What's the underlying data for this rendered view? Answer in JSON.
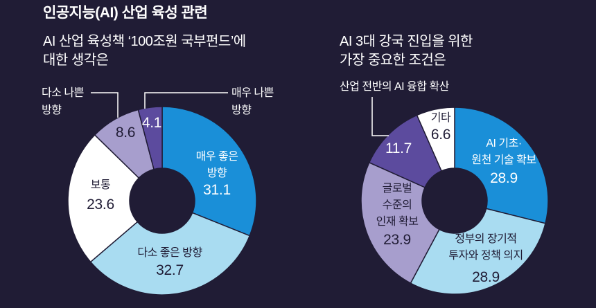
{
  "title": "인공지능(AI) 산업 육성 관련",
  "colors": {
    "background": "#201c35",
    "text_light": "#ffffff",
    "text_dark": "#201c35"
  },
  "chart_data": [
    {
      "type": "pie",
      "donut": true,
      "title": "AI 산업 육성책 ‘100조원 국부펀드’에\n대한 생각은",
      "categories": [
        "매우 좋은\n방향",
        "다소 좋은 방향",
        "보통",
        "다소 나쁜\n방향",
        "매우 나쁜\n방향"
      ],
      "values": [
        31.1,
        32.7,
        23.6,
        8.6,
        4.1
      ],
      "colors": [
        "#1a8fd8",
        "#a9dcf1",
        "#ffffff",
        "#a79ecd",
        "#5c4b9e"
      ]
    },
    {
      "type": "pie",
      "donut": true,
      "title": "AI 3대 강국 진입을 위한\n가장 중요한 조건은",
      "categories": [
        "AI 기초·\n원천 기술 확보",
        "정부의 장기적\n투자와 정책 의지",
        "글로벌\n수준의\n인재 확보",
        "산업 전반의 AI 융합 확산",
        "기타"
      ],
      "values": [
        28.9,
        28.9,
        23.9,
        11.7,
        6.6
      ],
      "colors": [
        "#1a8fd8",
        "#a9dcf1",
        "#a79ecd",
        "#5c4b9e",
        "#ffffff"
      ]
    }
  ]
}
